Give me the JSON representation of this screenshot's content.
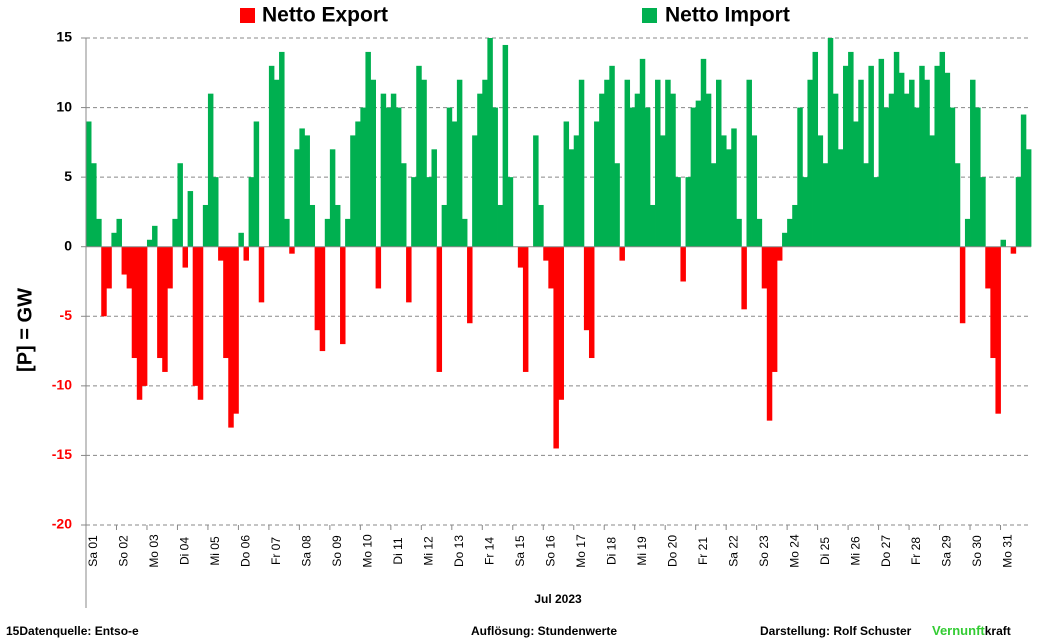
{
  "chart_data": {
    "type": "area",
    "legend": [
      {
        "name": "Netto Export",
        "color": "#ff0000"
      },
      {
        "name": "Netto Import",
        "color": "#00b050"
      }
    ],
    "y_label": "[P] = GW",
    "x_label": "Jul 2023",
    "categories": [
      "Sa 01",
      "So 02",
      "Mo 03",
      "Di 04",
      "Mi 05",
      "Do 06",
      "Fr 07",
      "Sa 08",
      "So 09",
      "Mo 10",
      "Di 11",
      "Mi 12",
      "Do 13",
      "Fr 14",
      "Sa 15",
      "So 16",
      "Mo 17",
      "Di 18",
      "Mi 19",
      "Do 20",
      "Fr 21",
      "Sa 22",
      "So 23",
      "Mo 24",
      "Di 25",
      "Mi 26",
      "Do 27",
      "Fr 28",
      "Sa 29",
      "So 30",
      "Mo 31"
    ],
    "values": [
      [
        9,
        6,
        2,
        -5,
        -3,
        1
      ],
      [
        2,
        -2,
        -3,
        -8,
        -11,
        -10
      ],
      [
        0.5,
        1.5,
        -8,
        -9,
        -3,
        2
      ],
      [
        6,
        -1.5,
        4,
        -10,
        -11,
        3
      ],
      [
        11,
        5,
        -1,
        -8,
        -13,
        -12
      ],
      [
        1,
        -1,
        5,
        9,
        -4,
        0
      ],
      [
        13,
        12,
        14,
        2,
        -0.5,
        7
      ],
      [
        8.5,
        8,
        3,
        -6,
        -7.5,
        2
      ],
      [
        7,
        3,
        -7,
        2,
        8,
        9
      ],
      [
        10,
        14,
        12,
        -3,
        11,
        10
      ],
      [
        11,
        10,
        6,
        -4,
        5,
        13
      ],
      [
        12,
        5,
        7,
        -9,
        3,
        10
      ],
      [
        9,
        12,
        2,
        -5.5,
        8,
        11
      ],
      [
        12,
        15,
        10,
        3,
        14.5,
        5
      ],
      [
        0,
        -1.5,
        -9,
        0,
        8,
        3
      ],
      [
        -1,
        -3,
        -14.5,
        -11,
        9,
        7
      ],
      [
        8,
        12,
        -6,
        -8,
        9,
        11
      ],
      [
        12,
        13,
        6,
        -1,
        12,
        10
      ],
      [
        11,
        13.5,
        10,
        3,
        12,
        8
      ],
      [
        12,
        11,
        5,
        -2.5,
        5,
        10
      ],
      [
        10.5,
        13.5,
        11,
        6,
        12,
        8
      ],
      [
        7,
        8.5,
        2,
        -4.5,
        12,
        8
      ],
      [
        2,
        -3,
        -12.5,
        -9,
        -1,
        1
      ],
      [
        2,
        3,
        10,
        5,
        12,
        14
      ],
      [
        8,
        6,
        15,
        11,
        7,
        13
      ],
      [
        14,
        9,
        12,
        6,
        13,
        5
      ],
      [
        13.5,
        10,
        11,
        14,
        12.5,
        11
      ],
      [
        12,
        10,
        13,
        12,
        8,
        13
      ],
      [
        14,
        12.5,
        10,
        6,
        -5.5,
        2
      ],
      [
        12,
        10,
        5,
        -3,
        -8,
        -12
      ],
      [
        0.5,
        0,
        -0.5,
        5,
        9.5,
        7
      ]
    ],
    "ylim": [
      -20,
      15
    ],
    "yticks": [
      -20,
      -15,
      -10,
      -5,
      0,
      5,
      10,
      15
    ],
    "negative_tick_color": "#ff0000",
    "grid": true,
    "footer": {
      "source": "15Datenquelle: Entso-e",
      "resolution": "Auflösung: Stundenwerte",
      "author": "Darstellung:  Rolf Schuster",
      "brand_green": "Vernunft",
      "brand_black": "kraft"
    }
  }
}
